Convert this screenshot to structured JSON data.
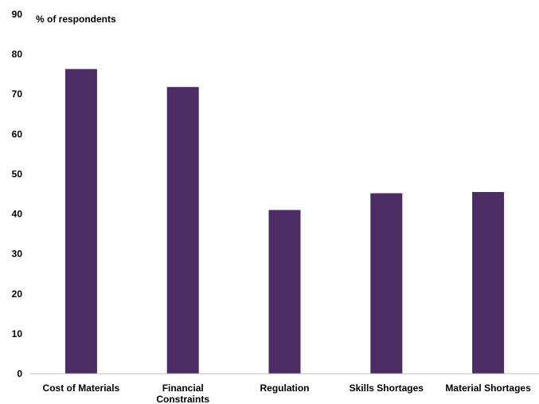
{
  "chart_data": {
    "type": "bar",
    "ylabel": "% of respondents",
    "categories": [
      "Cost of Materials",
      "Financial Constraints",
      "Regulation",
      "Skills Shortages",
      "Material Shortages"
    ],
    "category_lines": [
      [
        "Cost of Materials"
      ],
      [
        "Financial",
        "Constraints"
      ],
      [
        "Regulation"
      ],
      [
        "Skills Shortages"
      ],
      [
        "Material Shortages"
      ]
    ],
    "values": [
      76.3,
      71.8,
      41.0,
      45.2,
      45.5
    ],
    "ylim": [
      0,
      90
    ],
    "yticks": [
      0,
      10,
      20,
      30,
      40,
      50,
      60,
      70,
      80,
      90
    ],
    "grid": false,
    "colors": {
      "bar": "#4b2c63",
      "axis": "#bfbfbf"
    }
  }
}
